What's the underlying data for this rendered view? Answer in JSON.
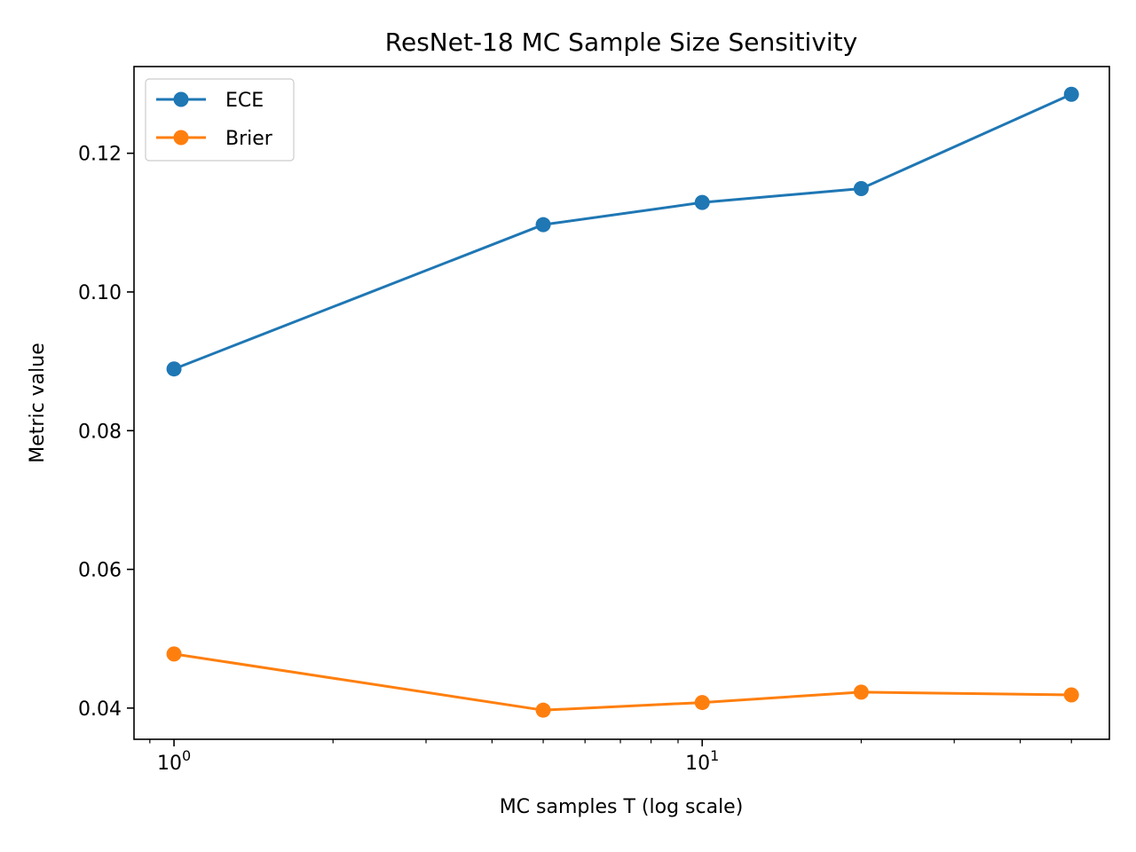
{
  "chart_data": {
    "type": "line",
    "title": "ResNet-18 MC Sample Size Sensitivity",
    "xlabel": "MC samples T (log scale)",
    "ylabel": "Metric value",
    "xscale": "log",
    "x": [
      1,
      5,
      10,
      20,
      50
    ],
    "xlim": [
      0.84,
      59
    ],
    "ylim": [
      0.0355,
      0.1325
    ],
    "xticks": [
      {
        "value": 1,
        "base": "10",
        "exp": "0"
      },
      {
        "value": 10,
        "base": "10",
        "exp": "1"
      }
    ],
    "yticks": [
      {
        "value": 0.04,
        "label": "0.04"
      },
      {
        "value": 0.06,
        "label": "0.06"
      },
      {
        "value": 0.08,
        "label": "0.08"
      },
      {
        "value": 0.1,
        "label": "0.10"
      },
      {
        "value": 0.12,
        "label": "0.12"
      }
    ],
    "series": [
      {
        "name": "ECE",
        "color": "#1f77b4",
        "values": [
          0.0889,
          0.1097,
          0.1129,
          0.1149,
          0.1285
        ]
      },
      {
        "name": "Brier",
        "color": "#ff7f0e",
        "values": [
          0.0478,
          0.0397,
          0.0408,
          0.0423,
          0.0419
        ]
      }
    ],
    "legend_position": "top-left",
    "grid": false
  }
}
